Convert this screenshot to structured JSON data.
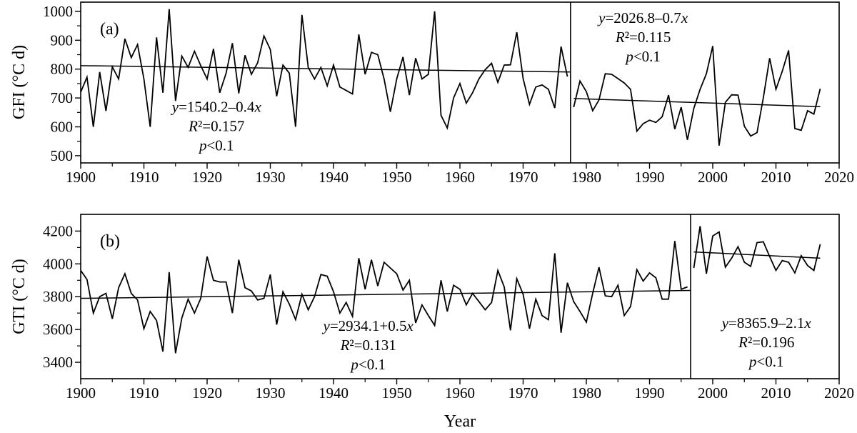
{
  "figure": {
    "xlabel": "Year",
    "background": "#ffffff",
    "line_color": "#000000"
  },
  "chart_data": [
    {
      "panel": "(a)",
      "type": "line",
      "ylabel": "GFI (°C d)",
      "xlabel": "",
      "xlim": [
        1900,
        2020
      ],
      "ylim": [
        475,
        1032
      ],
      "xticks": [
        1900,
        1910,
        1920,
        1930,
        1940,
        1950,
        1960,
        1970,
        1980,
        1990,
        2000,
        2010,
        2020
      ],
      "yticks": [
        500,
        600,
        700,
        800,
        900,
        1000
      ],
      "grid": false,
      "divider_year": 1977.5,
      "series": [
        {
          "name": "GFI 1900-1977",
          "start_year": 1900,
          "values": [
            720,
            772,
            600,
            790,
            655,
            808,
            766,
            905,
            840,
            885,
            766,
            600,
            910,
            718,
            1008,
            690,
            845,
            806,
            862,
            812,
            766,
            870,
            718,
            786,
            890,
            716,
            848,
            782,
            822,
            915,
            868,
            706,
            814,
            786,
            600,
            988,
            806,
            766,
            806,
            742,
            814,
            738,
            726,
            714,
            920,
            782,
            858,
            850,
            766,
            652,
            766,
            842,
            710,
            838,
            766,
            782,
            1000,
            640,
            596,
            700,
            750,
            682,
            718,
            766,
            798,
            820,
            754,
            814,
            815,
            928,
            767,
            678,
            738,
            745,
            730,
            665,
            878,
            774
          ]
        },
        {
          "name": "GFI 1978-2017",
          "start_year": 1978,
          "values": [
            668,
            759,
            722,
            656,
            693,
            784,
            782,
            767,
            752,
            730,
            585,
            611,
            623,
            615,
            635,
            710,
            592,
            668,
            555,
            664,
            730,
            784,
            880,
            535,
            685,
            711,
            710,
            602,
            568,
            580,
            700,
            838,
            730,
            792,
            865,
            594,
            588,
            656,
            644,
            732
          ]
        }
      ],
      "trends": [
        {
          "x": [
            1900,
            1977.5
          ],
          "y": [
            812,
            790
          ]
        },
        {
          "x": [
            1978,
            2017
          ],
          "y": [
            698,
            670
          ]
        }
      ],
      "annotations": [
        {
          "lines": [
            "y=1540.2–0.4x",
            "R²=0.157",
            "p<0.1"
          ],
          "anchor_year": 1921.5,
          "anchor_value": 652
        },
        {
          "lines": [
            "y=2026.8–0.7x",
            "R²=0.115",
            "p<0.1"
          ],
          "anchor_year": 1989,
          "anchor_value": 960
        }
      ]
    },
    {
      "panel": "(b)",
      "type": "line",
      "ylabel": "GTI (°C d)",
      "xlabel": "Year",
      "xlim": [
        1900,
        2020
      ],
      "ylim": [
        3300,
        4302
      ],
      "xticks": [
        1900,
        1910,
        1920,
        1930,
        1940,
        1950,
        1960,
        1970,
        1980,
        1990,
        2000,
        2010,
        2020
      ],
      "yticks": [
        3400,
        3600,
        3800,
        4000,
        4200
      ],
      "grid": false,
      "divider_year": 1996.5,
      "series": [
        {
          "name": "GTI 1900-1996",
          "start_year": 1900,
          "values": [
            3960,
            3905,
            3700,
            3800,
            3820,
            3665,
            3855,
            3940,
            3820,
            3780,
            3605,
            3710,
            3655,
            3465,
            3950,
            3455,
            3670,
            3785,
            3700,
            3790,
            4045,
            3900,
            3890,
            3890,
            3700,
            4025,
            3855,
            3835,
            3780,
            3790,
            3935,
            3630,
            3830,
            3755,
            3660,
            3815,
            3720,
            3800,
            3935,
            3925,
            3830,
            3700,
            3765,
            3680,
            4035,
            3845,
            4025,
            3865,
            4010,
            3975,
            3940,
            3840,
            3900,
            3640,
            3750,
            3685,
            3625,
            3900,
            3710,
            3870,
            3845,
            3750,
            3820,
            3770,
            3720,
            3765,
            3960,
            3860,
            3595,
            3910,
            3815,
            3605,
            3785,
            3685,
            3660,
            4065,
            3580,
            3885,
            3770,
            3710,
            3645,
            3820,
            3980,
            3805,
            3800,
            3870,
            3685,
            3740,
            3965,
            3895,
            3945,
            3915,
            3785,
            3785,
            4140,
            3845,
            3860
          ]
        },
        {
          "name": "GTI 1997-2017",
          "start_year": 1997,
          "values": [
            3975,
            4230,
            3940,
            4170,
            4195,
            3980,
            4035,
            4105,
            4010,
            3985,
            4130,
            4135,
            4045,
            3960,
            4020,
            4010,
            3945,
            4050,
            3990,
            3960,
            4120
          ]
        }
      ],
      "trends": [
        {
          "x": [
            1900,
            1996.5
          ],
          "y": [
            3790,
            3838
          ]
        },
        {
          "x": [
            1997,
            2017
          ],
          "y": [
            4073,
            4035
          ]
        }
      ],
      "annotations": [
        {
          "lines": [
            "y=2934.1+0.5x",
            "R²=0.131",
            "p<0.1"
          ],
          "anchor_year": 1945.5,
          "anchor_value": 3592
        },
        {
          "lines": [
            "y=8365.9–2.1x",
            "R²=0.196",
            "p<0.1"
          ],
          "anchor_year": 2008.5,
          "anchor_value": 3610
        }
      ]
    }
  ]
}
